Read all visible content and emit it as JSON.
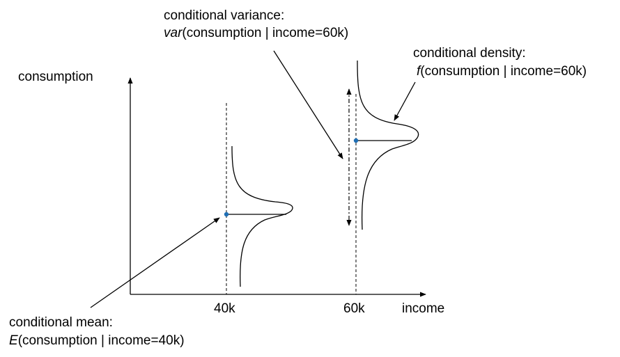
{
  "axes": {
    "y_label": "consumption",
    "x_label": "income",
    "ticks": [
      "40k",
      "60k"
    ]
  },
  "annotations": {
    "variance": {
      "line1": "conditional variance:",
      "func": "var",
      "args": "(consumption | income=60k)"
    },
    "density": {
      "line1": "conditional density:",
      "func": "f",
      "args": "(consumption | income=60k)"
    },
    "mean": {
      "line1": "conditional mean:",
      "func": "E",
      "args": "(consumption | income=40k)"
    }
  },
  "colors": {
    "ink": "#000000",
    "mean_point": "#1f6fb5"
  }
}
